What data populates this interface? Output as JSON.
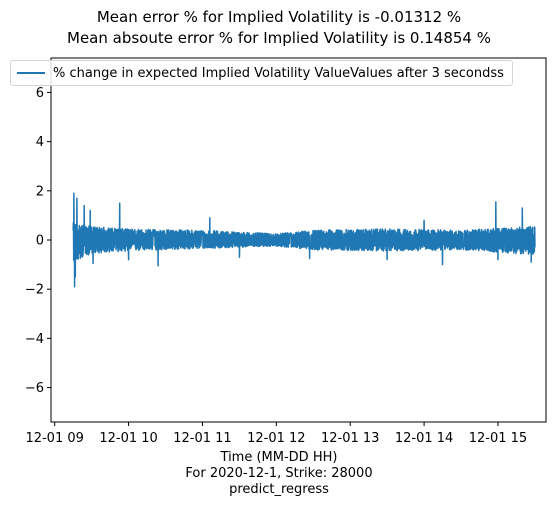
{
  "chart_data": {
    "type": "line",
    "title": [
      "Mean error % for Implied Volatility is -0.01312 %",
      "Mean absoute error % for Implied Volatility is 0.14854 %"
    ],
    "xlabel": [
      "Time (MM-DD HH)",
      "For 2020-12-1, Strike: 28000",
      "predict_regress"
    ],
    "ylabel": "",
    "x_ticks": [
      "12-01 09",
      "12-01 10",
      "12-01 11",
      "12-01 12",
      "12-01 13",
      "12-01 14",
      "12-01 15"
    ],
    "x_tick_hours": [
      9,
      10,
      11,
      12,
      13,
      14,
      15
    ],
    "xlim": [
      8.95,
      15.65
    ],
    "y_ticks": [
      -6,
      -4,
      -2,
      0,
      2,
      4,
      6
    ],
    "ylim": [
      -7.4,
      7.4
    ],
    "grid": false,
    "legend_position": "top-left",
    "series": [
      {
        "name": "% change in expected Implied Volatility ValueValues after 3 secondss",
        "color": "#1f77b4",
        "x_start_hour": 9.25,
        "x_end_hour": 15.5,
        "envelope": [
          {
            "x": 9.25,
            "upper": 0.7,
            "lower": -0.9
          },
          {
            "x": 9.5,
            "upper": 0.55,
            "lower": -0.55
          },
          {
            "x": 10.0,
            "upper": 0.45,
            "lower": -0.45
          },
          {
            "x": 11.0,
            "upper": 0.4,
            "lower": -0.35
          },
          {
            "x": 12.0,
            "upper": 0.25,
            "lower": -0.25
          },
          {
            "x": 12.5,
            "upper": 0.4,
            "lower": -0.4
          },
          {
            "x": 13.5,
            "upper": 0.45,
            "lower": -0.45
          },
          {
            "x": 14.5,
            "upper": 0.4,
            "lower": -0.4
          },
          {
            "x": 15.5,
            "upper": 0.55,
            "lower": -0.6
          }
        ],
        "spikes": [
          {
            "x": 9.26,
            "y": 1.9
          },
          {
            "x": 9.27,
            "y": -1.9
          },
          {
            "x": 9.3,
            "y": 1.7
          },
          {
            "x": 9.28,
            "y": -1.5
          },
          {
            "x": 9.4,
            "y": 1.4
          },
          {
            "x": 9.48,
            "y": 1.2
          },
          {
            "x": 9.52,
            "y": -0.95
          },
          {
            "x": 9.88,
            "y": 1.5
          },
          {
            "x": 10.0,
            "y": -0.8
          },
          {
            "x": 10.4,
            "y": -1.05
          },
          {
            "x": 11.1,
            "y": 0.9
          },
          {
            "x": 11.5,
            "y": -0.7
          },
          {
            "x": 12.45,
            "y": 1.25
          },
          {
            "x": 12.45,
            "y": -0.75
          },
          {
            "x": 13.5,
            "y": -0.8
          },
          {
            "x": 14.0,
            "y": 0.8
          },
          {
            "x": 14.25,
            "y": -1.0
          },
          {
            "x": 14.97,
            "y": 1.55
          },
          {
            "x": 15.0,
            "y": -0.8
          },
          {
            "x": 15.33,
            "y": 1.3
          },
          {
            "x": 15.45,
            "y": -0.9
          }
        ]
      }
    ]
  }
}
